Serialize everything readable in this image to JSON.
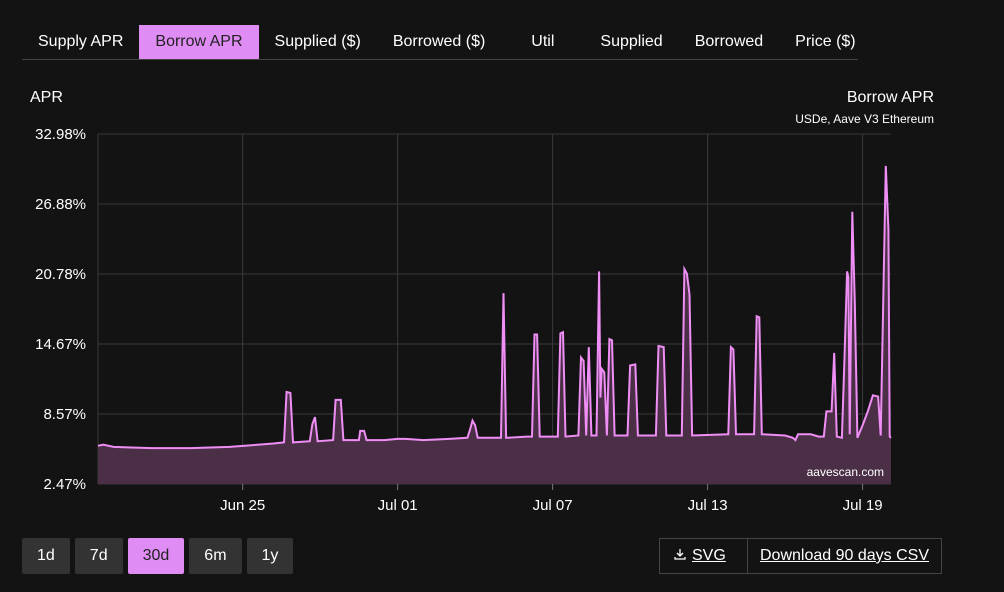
{
  "tabs": [
    {
      "label": "Supply APR",
      "active": false
    },
    {
      "label": "Borrow APR",
      "active": true
    },
    {
      "label": "Supplied ($)",
      "active": false
    },
    {
      "label": "Borrowed ($)",
      "active": false
    },
    {
      "label": "Util",
      "active": false
    },
    {
      "label": "Supplied",
      "active": false
    },
    {
      "label": "Borrowed",
      "active": false
    },
    {
      "label": "Price ($)",
      "active": false
    }
  ],
  "ranges": [
    {
      "label": "1d",
      "active": false
    },
    {
      "label": "7d",
      "active": false
    },
    {
      "label": "30d",
      "active": true
    },
    {
      "label": "6m",
      "active": false
    },
    {
      "label": "1y",
      "active": false
    }
  ],
  "buttons": {
    "svg": "SVG",
    "csv": "Download 90 days CSV"
  },
  "colors": {
    "line": "#ef8ef5",
    "fill": "#4a2f46",
    "active_tab": "#e08cf5"
  },
  "chart_data": {
    "type": "area",
    "title": "Borrow APR",
    "subtitle": "USDe, Aave V3 Ethereum",
    "ylabel": "APR",
    "watermark": "aavescan.com",
    "yticks": [
      "32.98%",
      "26.88%",
      "20.78%",
      "14.67%",
      "8.57%",
      "2.47%"
    ],
    "ylim": [
      2.47,
      32.98
    ],
    "xlim": [
      19.4,
      50.1
    ],
    "xtick_labels": [
      "Jun 25",
      "Jul 01",
      "Jul 07",
      "Jul 13",
      "Jul 19"
    ],
    "xtick_values": [
      25,
      31,
      37,
      43,
      49
    ],
    "grid": true,
    "points": [
      [
        19.4,
        5.8
      ],
      [
        19.6,
        5.9
      ],
      [
        20.0,
        5.7
      ],
      [
        21.5,
        5.6
      ],
      [
        23.0,
        5.6
      ],
      [
        24.5,
        5.7
      ],
      [
        26.2,
        6.0
      ],
      [
        26.6,
        6.1
      ],
      [
        26.7,
        10.5
      ],
      [
        26.85,
        10.4
      ],
      [
        26.95,
        6.1
      ],
      [
        27.6,
        6.2
      ],
      [
        27.7,
        7.7
      ],
      [
        27.8,
        8.3
      ],
      [
        27.9,
        6.2
      ],
      [
        28.5,
        6.3
      ],
      [
        28.6,
        9.8
      ],
      [
        28.8,
        9.8
      ],
      [
        28.9,
        6.3
      ],
      [
        29.5,
        6.3
      ],
      [
        29.55,
        7.1
      ],
      [
        29.7,
        7.1
      ],
      [
        29.8,
        6.3
      ],
      [
        30.5,
        6.3
      ],
      [
        31.0,
        6.4
      ],
      [
        31.3,
        6.4
      ],
      [
        32.0,
        6.3
      ],
      [
        33.0,
        6.4
      ],
      [
        33.7,
        6.5
      ],
      [
        33.8,
        7.2
      ],
      [
        33.9,
        8.0
      ],
      [
        34.0,
        7.6
      ],
      [
        34.1,
        6.5
      ],
      [
        34.5,
        6.5
      ],
      [
        35.0,
        6.5
      ],
      [
        35.1,
        19.1
      ],
      [
        35.2,
        6.5
      ],
      [
        36.0,
        6.6
      ],
      [
        36.2,
        6.6
      ],
      [
        36.3,
        15.5
      ],
      [
        36.4,
        15.5
      ],
      [
        36.5,
        6.6
      ],
      [
        37.0,
        6.6
      ],
      [
        37.2,
        6.6
      ],
      [
        37.3,
        15.6
      ],
      [
        37.4,
        15.7
      ],
      [
        37.5,
        6.6
      ],
      [
        38.0,
        6.7
      ],
      [
        38.1,
        13.5
      ],
      [
        38.2,
        13.2
      ],
      [
        38.3,
        6.7
      ],
      [
        38.4,
        14.4
      ],
      [
        38.5,
        6.7
      ],
      [
        38.7,
        6.7
      ],
      [
        38.8,
        21.0
      ],
      [
        38.85,
        10.0
      ],
      [
        38.9,
        12.5
      ],
      [
        39.0,
        12.2
      ],
      [
        39.1,
        6.7
      ],
      [
        39.2,
        15.1
      ],
      [
        39.3,
        15.0
      ],
      [
        39.4,
        6.7
      ],
      [
        39.9,
        6.7
      ],
      [
        40.0,
        12.8
      ],
      [
        40.2,
        12.9
      ],
      [
        40.3,
        6.7
      ],
      [
        41.0,
        6.7
      ],
      [
        41.1,
        14.5
      ],
      [
        41.3,
        14.4
      ],
      [
        41.4,
        6.7
      ],
      [
        42.0,
        6.7
      ],
      [
        42.1,
        21.2
      ],
      [
        42.2,
        20.8
      ],
      [
        42.3,
        19.0
      ],
      [
        42.4,
        6.7
      ],
      [
        43.8,
        6.8
      ],
      [
        43.9,
        14.4
      ],
      [
        44.0,
        14.2
      ],
      [
        44.1,
        6.8
      ],
      [
        44.8,
        6.8
      ],
      [
        44.9,
        17.1
      ],
      [
        45.0,
        17.0
      ],
      [
        45.1,
        6.8
      ],
      [
        46.0,
        6.7
      ],
      [
        46.3,
        6.5
      ],
      [
        46.4,
        6.3
      ],
      [
        46.5,
        6.8
      ],
      [
        47.0,
        6.8
      ],
      [
        47.3,
        6.6
      ],
      [
        47.5,
        6.6
      ],
      [
        47.6,
        8.8
      ],
      [
        47.8,
        8.8
      ],
      [
        47.9,
        13.9
      ],
      [
        48.0,
        6.6
      ],
      [
        48.2,
        6.5
      ],
      [
        48.3,
        13.5
      ],
      [
        48.4,
        21.0
      ],
      [
        48.45,
        20.5
      ],
      [
        48.5,
        6.8
      ],
      [
        48.6,
        26.2
      ],
      [
        48.7,
        18.3
      ],
      [
        48.8,
        6.5
      ],
      [
        49.0,
        7.6
      ],
      [
        49.2,
        8.8
      ],
      [
        49.4,
        10.2
      ],
      [
        49.6,
        10.1
      ],
      [
        49.7,
        6.7
      ],
      [
        49.9,
        30.2
      ],
      [
        50.0,
        24.7
      ],
      [
        50.05,
        6.6
      ],
      [
        50.1,
        6.5
      ]
    ]
  }
}
